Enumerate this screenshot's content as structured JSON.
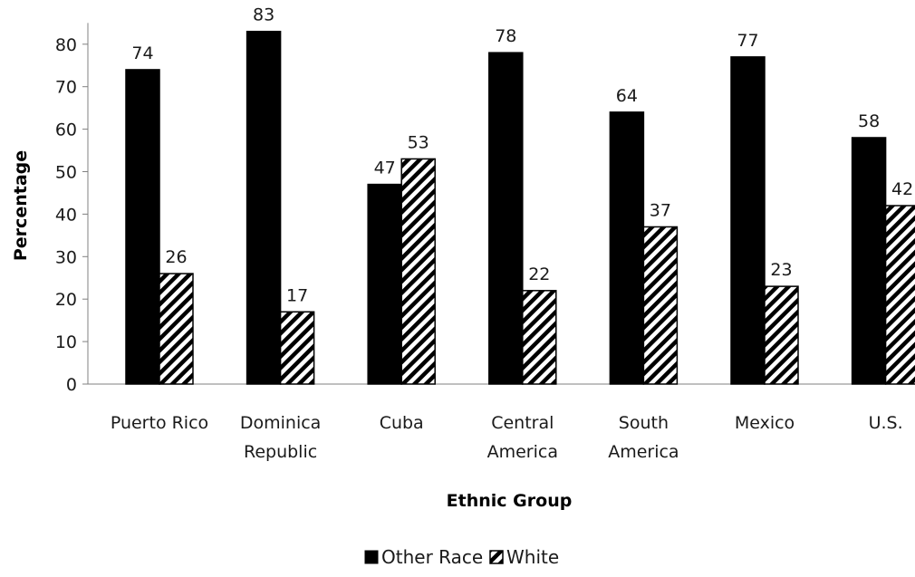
{
  "chart_data": {
    "type": "bar",
    "categories": [
      [
        "Puerto Rico"
      ],
      [
        "Dominica",
        "Republic"
      ],
      [
        "Cuba"
      ],
      [
        "Central",
        "America"
      ],
      [
        "South",
        "America"
      ],
      [
        "Mexico"
      ],
      [
        "U.S."
      ]
    ],
    "series": [
      {
        "name": "Other Race",
        "values": [
          74,
          83,
          47,
          78,
          64,
          77,
          58
        ],
        "fill": "#000000"
      },
      {
        "name": "White",
        "values": [
          26,
          17,
          53,
          22,
          37,
          23,
          42
        ],
        "fill": "hatch"
      }
    ],
    "xlabel": "Ethnic Group",
    "ylabel": "Percentage",
    "ylim": [
      0,
      85
    ],
    "yticks": [
      0,
      10,
      20,
      30,
      40,
      50,
      60,
      70,
      80
    ],
    "grid": false,
    "legend_position": "bottom-center"
  }
}
